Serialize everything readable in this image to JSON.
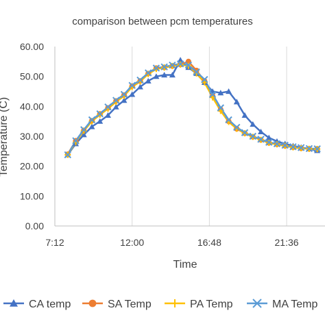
{
  "chart_data": {
    "type": "line",
    "title": "comparison between pcm temperatures",
    "xlabel": "Time",
    "ylabel": "Temperature (C)",
    "ylim": [
      0,
      60
    ],
    "yticks": [
      "0.00",
      "10.00",
      "20.00",
      "30.00",
      "40.00",
      "50.00",
      "60.00"
    ],
    "xlim": [
      "7:12",
      "23:59"
    ],
    "xticks": [
      "7:12",
      "12:00",
      "16:48",
      "21:36"
    ],
    "grid": "vertical",
    "legend": "bottom",
    "x": [
      "8:00",
      "8:30",
      "9:00",
      "9:30",
      "10:00",
      "10:30",
      "11:00",
      "11:30",
      "12:00",
      "12:30",
      "13:00",
      "13:30",
      "14:00",
      "14:30",
      "15:00",
      "15:30",
      "16:00",
      "16:30",
      "17:00",
      "17:30",
      "18:00",
      "18:30",
      "19:00",
      "19:30",
      "20:00",
      "20:30",
      "21:00",
      "21:30",
      "22:00",
      "22:30",
      "23:00",
      "23:30"
    ],
    "series": [
      {
        "name": "CA temp",
        "color": "#4472C4",
        "marker": "triangle",
        "values": [
          23.8,
          27.5,
          30.5,
          33.2,
          35.0,
          37.0,
          39.8,
          42.0,
          44.0,
          46.5,
          48.5,
          50.0,
          50.5,
          50.5,
          55.5,
          53.0,
          51.0,
          48.0,
          45.0,
          44.5,
          45.0,
          41.5,
          37.0,
          34.0,
          31.5,
          29.5,
          28.3,
          27.5,
          26.8,
          26.3,
          25.8,
          25.2
        ]
      },
      {
        "name": "SA Temp",
        "color": "#ED7D31",
        "marker": "circle",
        "values": [
          24.0,
          28.5,
          32.0,
          35.2,
          37.5,
          39.5,
          41.8,
          43.8,
          46.8,
          48.5,
          51.0,
          52.8,
          53.0,
          53.5,
          54.0,
          55.0,
          52.0,
          48.5,
          43.5,
          39.0,
          35.0,
          32.5,
          31.0,
          29.8,
          28.8,
          27.8,
          27.3,
          26.8,
          26.3,
          26.0,
          25.8,
          25.8
        ]
      },
      {
        "name": "PA Temp",
        "color": "#FFC000",
        "marker": "plus",
        "values": [
          23.8,
          28.0,
          31.8,
          35.0,
          37.2,
          39.2,
          41.5,
          43.5,
          46.5,
          48.3,
          50.8,
          52.5,
          53.0,
          53.5,
          54.0,
          53.5,
          51.0,
          48.0,
          43.0,
          38.5,
          34.8,
          32.5,
          31.0,
          29.8,
          28.8,
          27.8,
          27.3,
          26.8,
          26.3,
          26.0,
          25.8,
          25.7
        ]
      },
      {
        "name": "MA Temp",
        "color": "#5B9BD5",
        "marker": "x",
        "values": [
          23.8,
          28.5,
          32.2,
          35.5,
          37.5,
          39.8,
          42.0,
          44.0,
          47.0,
          48.8,
          51.2,
          52.8,
          53.2,
          53.8,
          54.2,
          53.8,
          51.5,
          49.0,
          44.0,
          39.5,
          35.5,
          33.0,
          31.2,
          30.0,
          29.0,
          28.0,
          27.5,
          27.0,
          26.5,
          26.2,
          25.9,
          25.8
        ]
      }
    ]
  }
}
